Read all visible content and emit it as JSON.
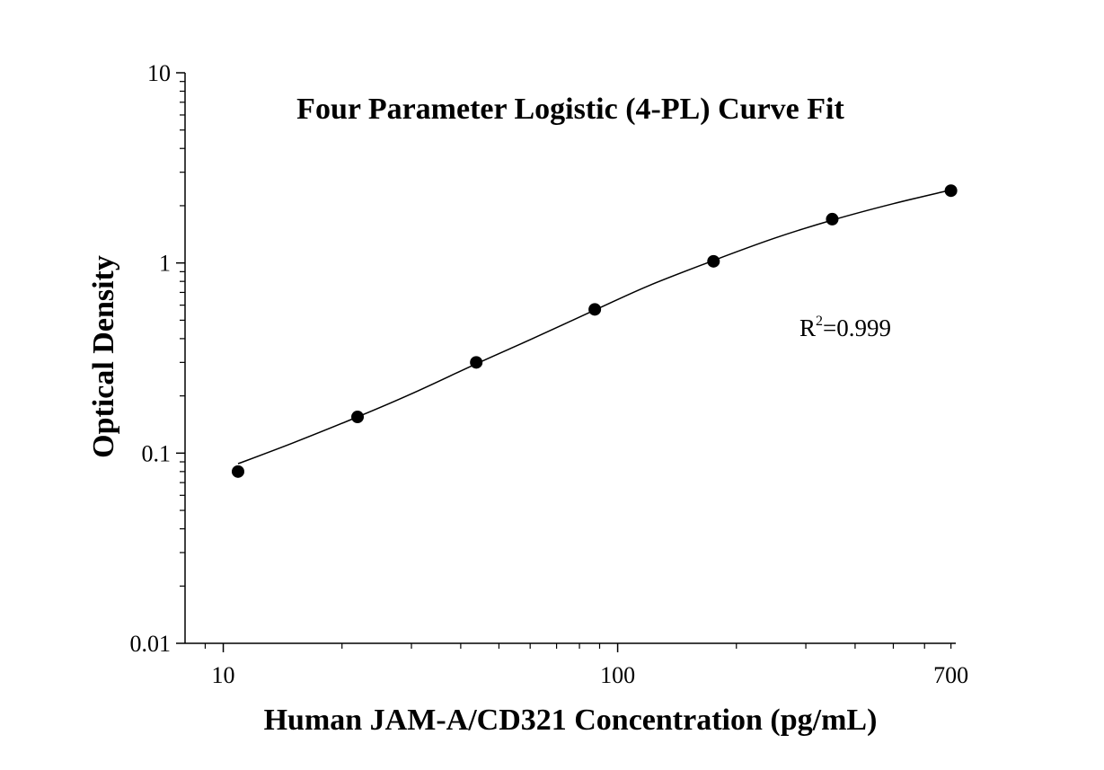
{
  "chart_data": {
    "type": "scatter",
    "title": "Four Parameter Logistic (4-PL) Curve Fit",
    "xlabel": "Human JAM-A/CD321 Concentration (pg/mL)",
    "ylabel": "Optical Density",
    "xscale": "log",
    "yscale": "log",
    "xlim": [
      8,
      720
    ],
    "ylim": [
      0.01,
      10
    ],
    "xticks": [
      10,
      100,
      700
    ],
    "xtick_labels": [
      "10",
      "100",
      "700"
    ],
    "yticks": [
      0.01,
      0.1,
      1,
      10
    ],
    "ytick_labels": [
      "0.01",
      "0.1",
      "1",
      "10"
    ],
    "grid": false,
    "legend": "none",
    "annotation": {
      "base": "R",
      "sup": "2",
      "rest": "=0.999"
    },
    "points": {
      "x": [
        10.9,
        21.9,
        43.8,
        87.5,
        175,
        350,
        700
      ],
      "y": [
        0.08,
        0.155,
        0.3,
        0.57,
        1.02,
        1.7,
        2.4
      ]
    },
    "fit_curve": {
      "model": "4-PL",
      "x_range": [
        10.9,
        700
      ],
      "x": [
        10.9,
        15,
        21.9,
        30,
        43.8,
        60,
        87.5,
        120,
        175,
        250,
        350,
        500,
        700
      ],
      "y": [
        0.088,
        0.113,
        0.155,
        0.205,
        0.295,
        0.395,
        0.565,
        0.76,
        1.03,
        1.35,
        1.68,
        2.05,
        2.42
      ]
    },
    "colors": {
      "points": "#000000",
      "curve": "#000000",
      "axes": "#000000"
    }
  }
}
